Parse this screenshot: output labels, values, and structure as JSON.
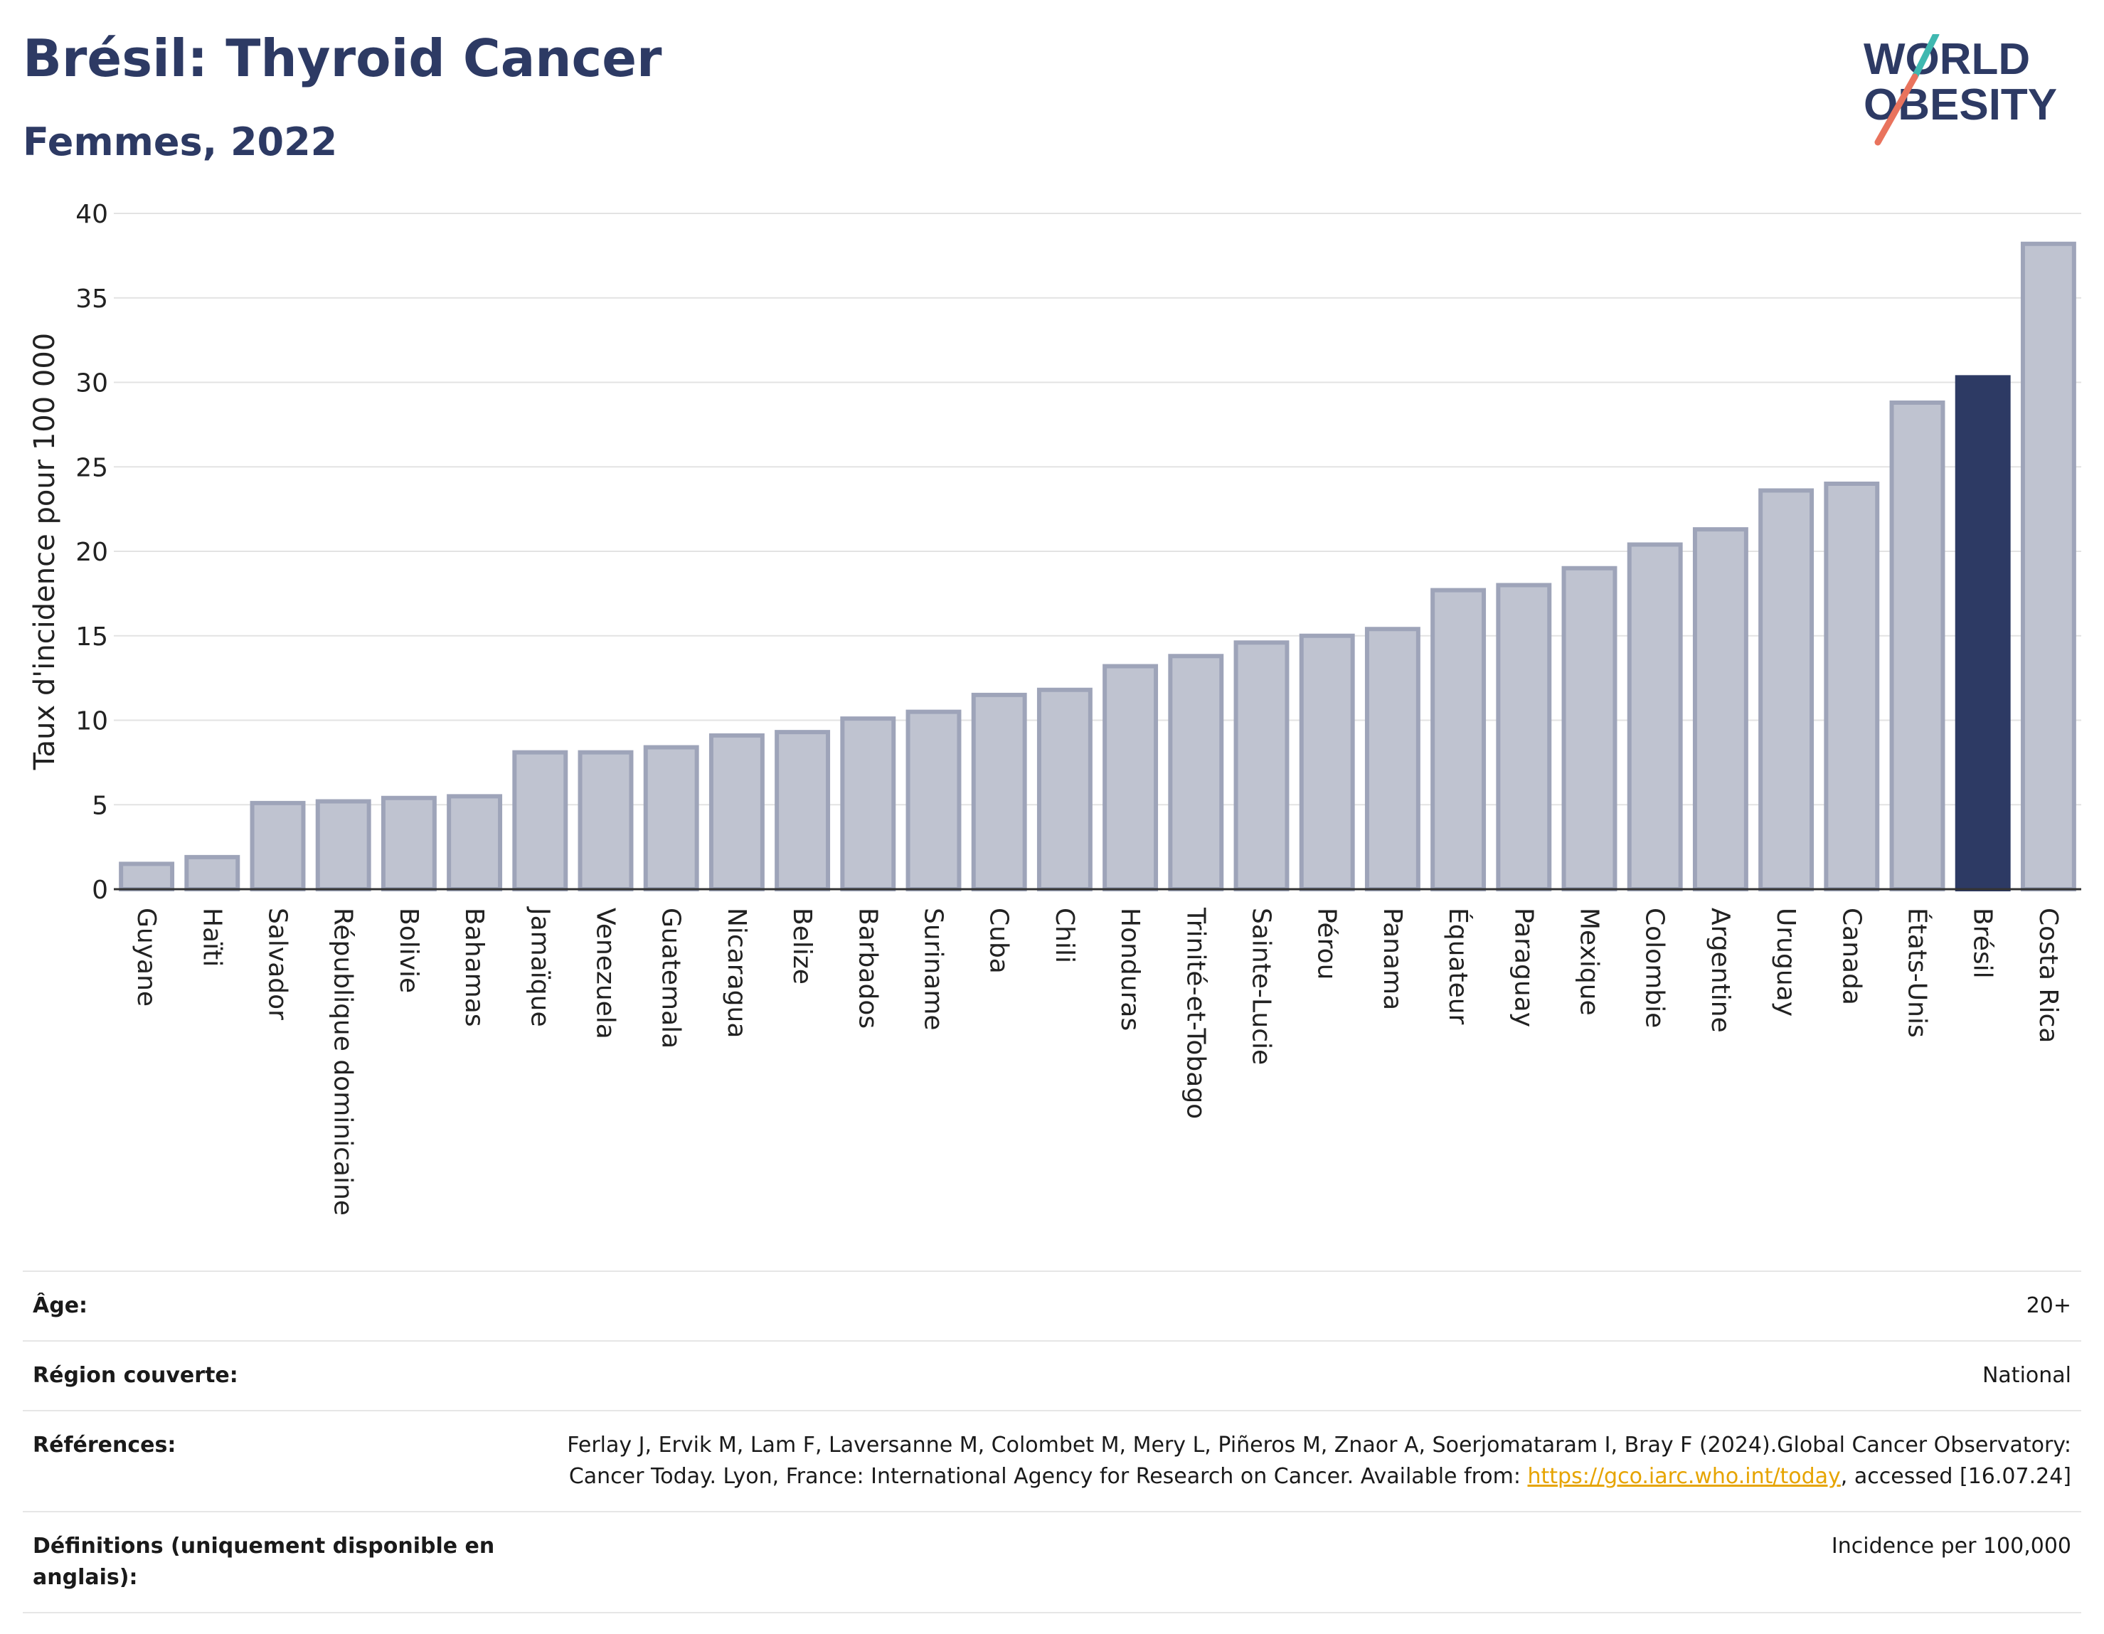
{
  "header": {
    "title": "Brésil: Thyroid Cancer",
    "subtitle": "Femmes, 2022"
  },
  "logo": {
    "line1": "WORLD",
    "line2": "OBESITY"
  },
  "colors": {
    "highlight": "#2d3a64",
    "bar_fill": "#bfc3d0",
    "bar_stroke": "#9ea4b9",
    "accent_teal": "#3fb8b0",
    "accent_coral": "#e9735d"
  },
  "chart_data": {
    "type": "bar",
    "title": "Brésil: Thyroid Cancer",
    "subtitle": "Femmes, 2022",
    "ylabel": "Taux d'incidence pour 100 000",
    "xlabel": "",
    "ylim": [
      0,
      40
    ],
    "yticks": [
      0,
      5,
      10,
      15,
      20,
      25,
      30,
      35,
      40
    ],
    "grid": true,
    "highlight_category": "Brésil",
    "categories": [
      "Guyane",
      "Haïti",
      "Salvador",
      "République dominicaine",
      "Bolivie",
      "Bahamas",
      "Jamaïque",
      "Venezuela",
      "Guatemala",
      "Nicaragua",
      "Belize",
      "Barbados",
      "Suriname",
      "Cuba",
      "Chili",
      "Honduras",
      "Trinité-et-Tobago",
      "Sainte-Lucie",
      "Pérou",
      "Panama",
      "Équateur",
      "Paraguay",
      "Mexique",
      "Colombie",
      "Argentine",
      "Uruguay",
      "Canada",
      "États-Unis",
      "Brésil",
      "Costa Rica"
    ],
    "values": [
      1.5,
      1.9,
      5.1,
      5.2,
      5.4,
      5.5,
      8.1,
      8.1,
      8.4,
      9.1,
      9.3,
      10.1,
      10.5,
      11.5,
      11.8,
      13.2,
      13.8,
      14.6,
      15.0,
      15.4,
      17.7,
      18.0,
      19.0,
      20.4,
      21.3,
      23.6,
      24.0,
      28.8,
      30.3,
      38.2
    ]
  },
  "info": {
    "rows": [
      {
        "label": "Âge:",
        "value": "20+"
      },
      {
        "label": "Région couverte:",
        "value": "National"
      },
      {
        "label": "Références:",
        "value": "Ferlay J, Ervik M, Lam F, Laversanne M, Colombet M, Mery L, Piñeros M, Znaor A, Soerjomataram I, Bray F (2024).Global Cancer Observatory: Cancer Today. Lyon, France: International Agency for Research on Cancer. Available from: ",
        "link": "https://gco.iarc.who.int/today",
        "value_after": ", accessed [16.07.24]"
      },
      {
        "label": "Définitions (uniquement disponible en anglais):",
        "value": "Incidence per 100,000"
      }
    ]
  }
}
